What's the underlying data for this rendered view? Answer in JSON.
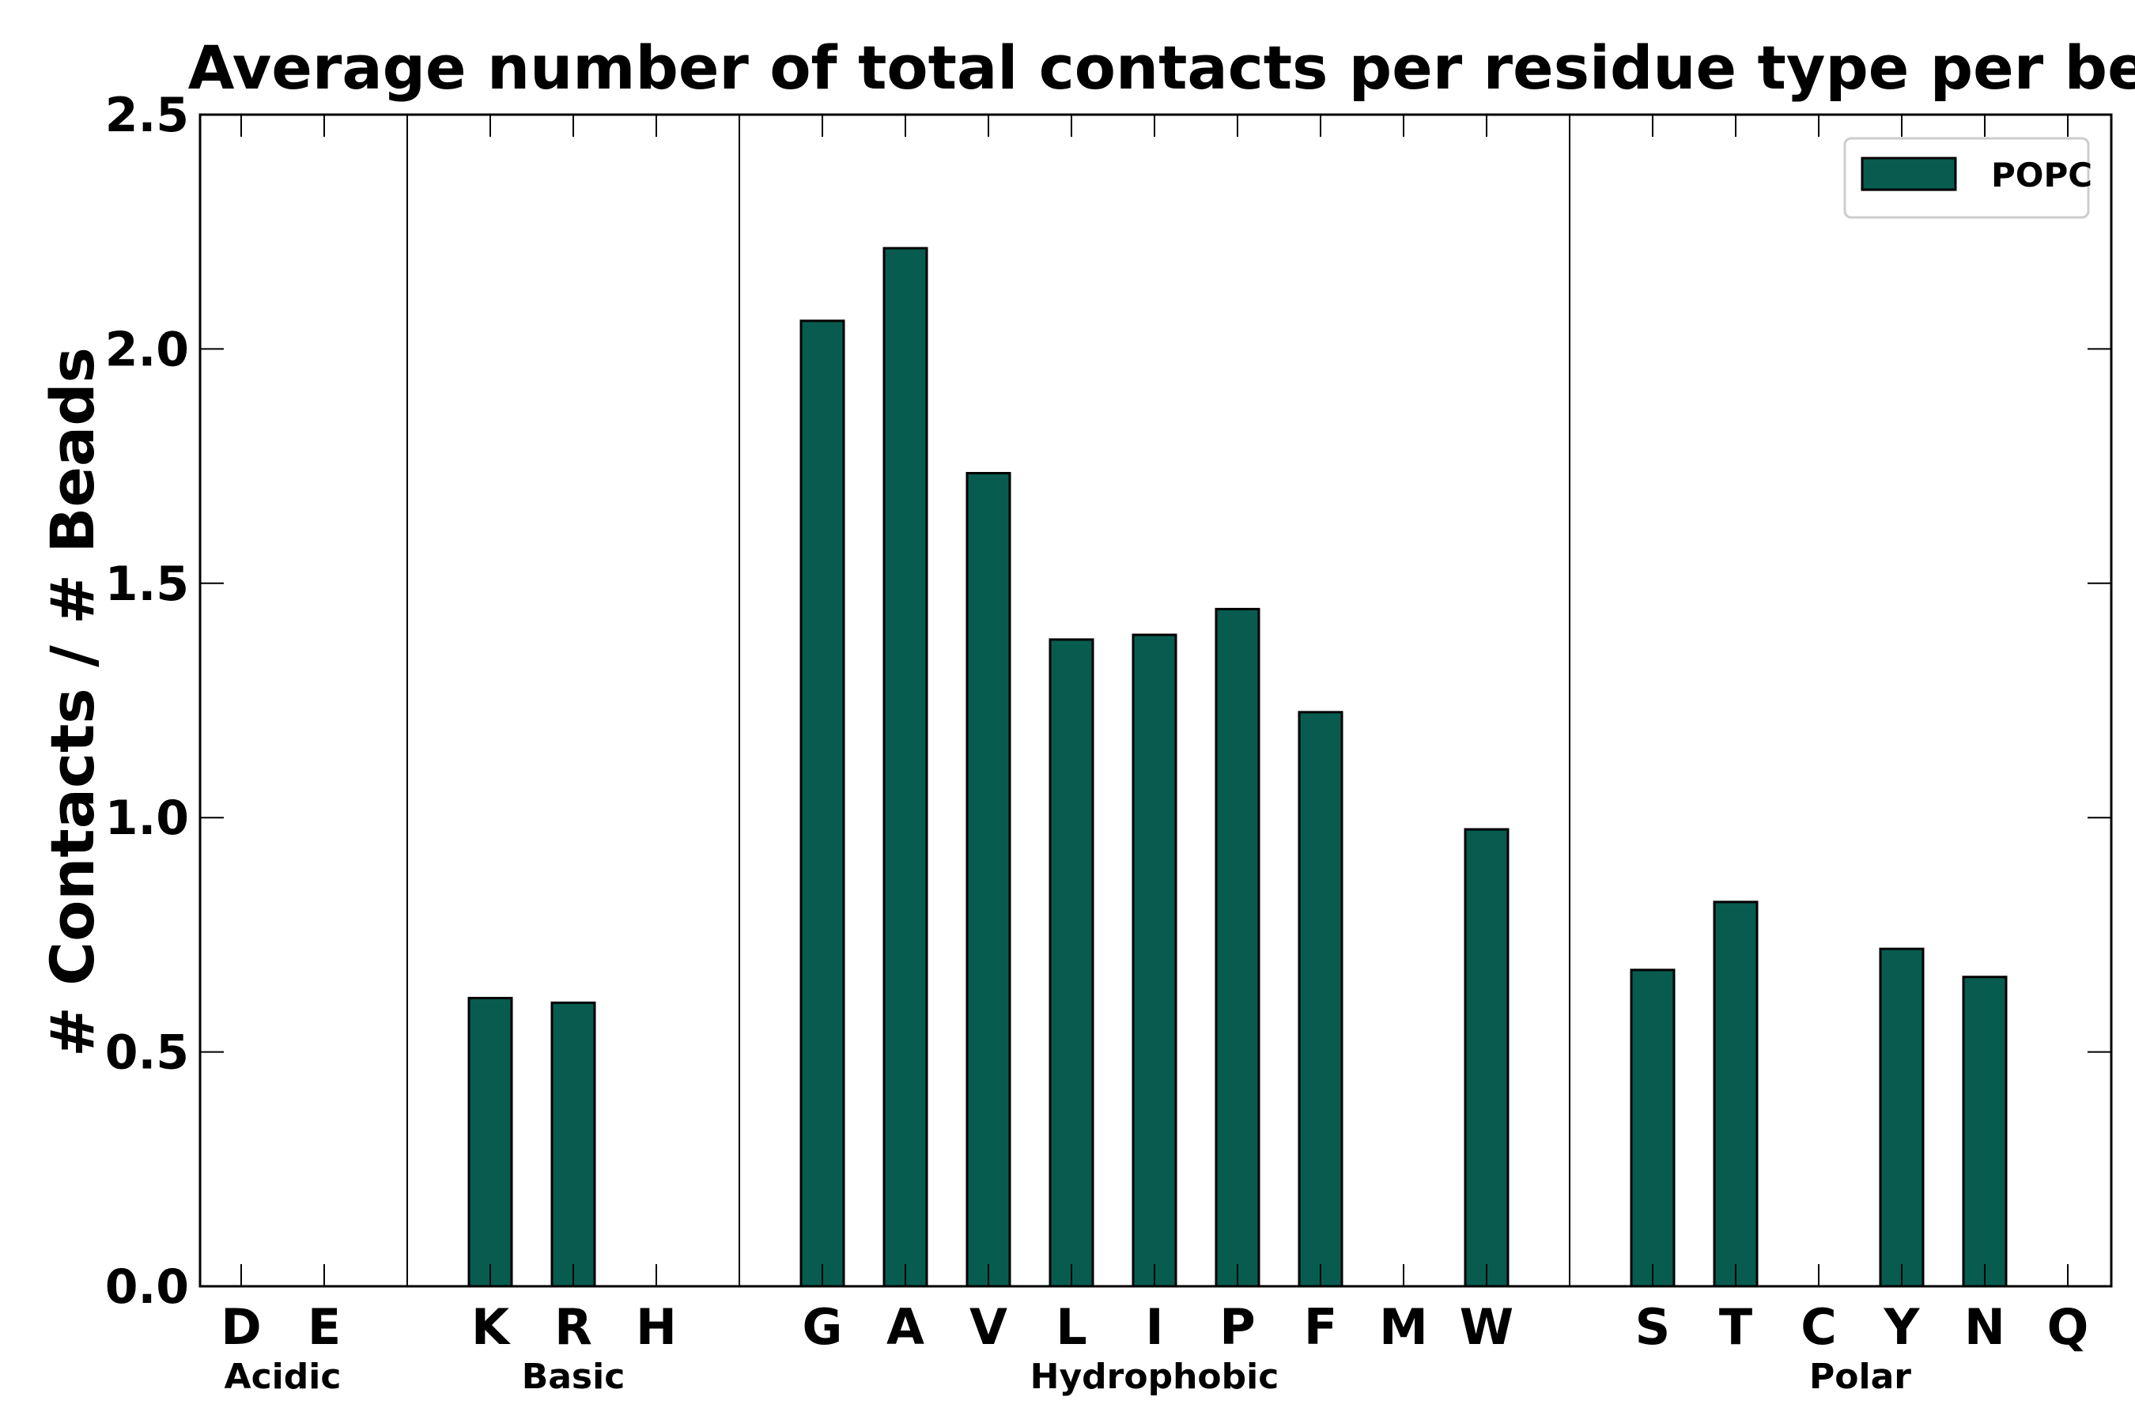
{
  "chart_data": {
    "type": "bar",
    "title": "Average number of total contacts per residue type per bead",
    "xlabel": "",
    "ylabel": "# Contacts / # Beads",
    "ylim": [
      0,
      2.5
    ],
    "yticks": [
      "0.0",
      "0.5",
      "1.0",
      "1.5",
      "2.0",
      "2.5"
    ],
    "grid": false,
    "legend_position": "top-right",
    "bar_color": "#075c4f",
    "categories": [
      "D",
      "E",
      "K",
      "R",
      "H",
      "G",
      "A",
      "V",
      "L",
      "I",
      "P",
      "F",
      "M",
      "W",
      "S",
      "T",
      "C",
      "Y",
      "N",
      "Q"
    ],
    "series": [
      {
        "name": "POPC",
        "values": [
          0.0,
          0.0,
          0.615,
          0.605,
          0.0,
          2.06,
          2.215,
          1.735,
          1.38,
          1.39,
          1.445,
          1.225,
          0.0,
          0.975,
          0.675,
          0.82,
          0.0,
          0.72,
          0.66,
          0.0
        ]
      }
    ],
    "groups": [
      {
        "label": "Acidic",
        "members": [
          "D",
          "E"
        ]
      },
      {
        "label": "Basic",
        "members": [
          "K",
          "R",
          "H"
        ]
      },
      {
        "label": "Hydrophobic",
        "members": [
          "G",
          "A",
          "V",
          "L",
          "I",
          "P",
          "F",
          "M",
          "W"
        ]
      },
      {
        "label": "Polar",
        "members": [
          "S",
          "T",
          "C",
          "Y",
          "N",
          "Q"
        ]
      }
    ]
  }
}
